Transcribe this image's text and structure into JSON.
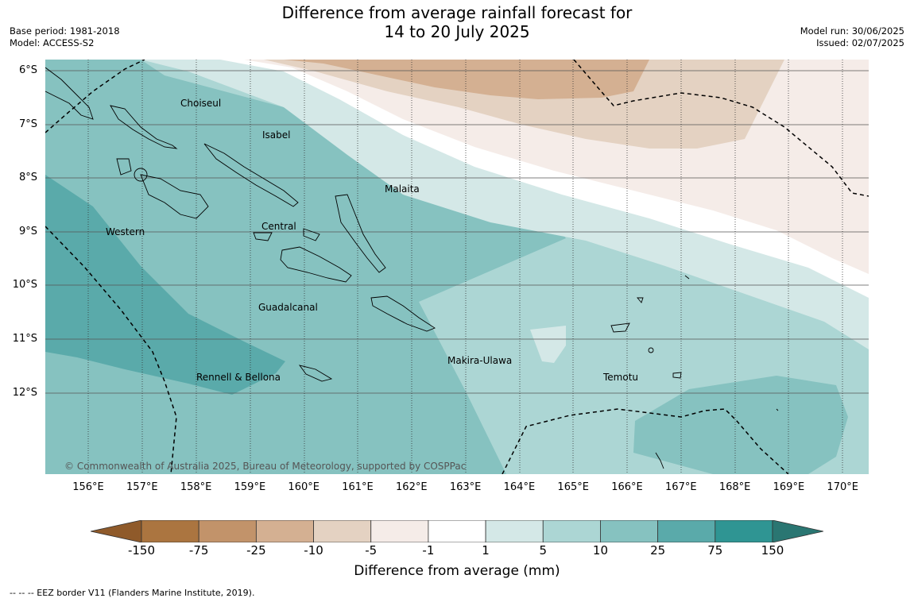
{
  "title": {
    "line1": "Difference from average rainfall forecast for",
    "line2": "14 to 20 July 2025"
  },
  "meta": {
    "base_period": "Base period: 1981-2018",
    "model": "Model: ACCESS-S2",
    "model_run": "Model run: 30/06/2025",
    "issued": "Issued: 02/07/2025"
  },
  "map": {
    "lat_labels": [
      "6°S",
      "7°S",
      "8°S",
      "9°S",
      "10°S",
      "11°S",
      "12°S"
    ],
    "lon_labels": [
      "156°E",
      "157°E",
      "158°E",
      "159°E",
      "160°E",
      "161°E",
      "162°E",
      "163°E",
      "164°E",
      "165°E",
      "166°E",
      "167°E",
      "168°E",
      "169°E",
      "170°E"
    ],
    "places": {
      "choiseul": "Choiseul",
      "isabel": "Isabel",
      "malaita": "Malaita",
      "western": "Western",
      "central": "Central",
      "guadalcanal": "Guadalcanal",
      "makira": "Makira-Ulawa",
      "temotu": "Temotu",
      "rennell": "Rennell & Bellona"
    },
    "copyright": "© Commonwealth of Australia 2025, Bureau of Meteorology, supported by COSPPac"
  },
  "colorbar": {
    "ticks": [
      "-150",
      "-75",
      "-25",
      "-10",
      "-5",
      "-1",
      "1",
      "5",
      "10",
      "25",
      "75",
      "150"
    ],
    "colors": [
      "#8f5a2a",
      "#ab7540",
      "#c2936a",
      "#d4b092",
      "#e4d2c2",
      "#f5ece8",
      "#ffffff",
      "#d4e8e7",
      "#acd6d4",
      "#86c2c0",
      "#5aaaaa",
      "#2f9593",
      "#2a7672"
    ],
    "label": "Difference from average (mm)"
  },
  "footer": {
    "eez_note": "--  --  -- EEZ border V11 (Flanders Marine Institute, 2019)."
  }
}
